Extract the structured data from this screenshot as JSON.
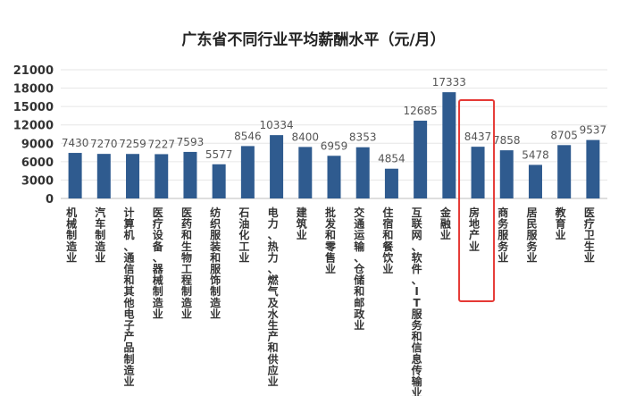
{
  "chart_data": {
    "type": "bar",
    "title": "广东省不同行业平均薪酬水平（元/月）",
    "categories": [
      "机械制造业",
      "汽车制造业",
      "计算机、通信和其他电子产品制造业",
      "医疗设备、器械制造业",
      "医药和生物工程制造业",
      "纺织服装和服饰制造业",
      "石油化工业",
      "电力、热力、燃气及水生产和供应业",
      "建筑业",
      "批发和零售业",
      "交通运输、仓储和邮政业",
      "住宿和餐饮业",
      "互联网、软件、IT服务和信息传输业",
      "金融业",
      "房地产业",
      "商务服务业",
      "居民服务业",
      "教育业",
      "医疗卫生业"
    ],
    "values": [
      7430,
      7270,
      7259,
      7227,
      7593,
      5577,
      8546,
      10334,
      8400,
      6959,
      8353,
      4854,
      12685,
      17333,
      8437,
      7858,
      5478,
      8705,
      9537
    ],
    "yticks": [
      "21000",
      "18000",
      "15000",
      "12000",
      "9000",
      "6000",
      "3000",
      "0"
    ],
    "ylim": [
      0,
      21000
    ],
    "highlight_category": "房地产业",
    "highlight_color": "#e53935",
    "bar_color": "#2f5b8f",
    "grid": true
  }
}
